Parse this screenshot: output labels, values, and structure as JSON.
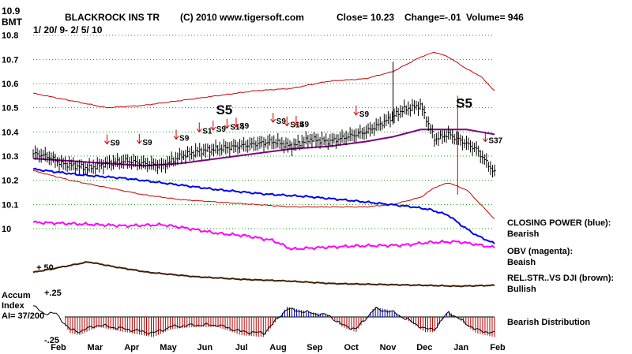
{
  "chart_data": {
    "type": "line",
    "header": {
      "y_top_label": "10.9",
      "ticker": "BMT",
      "name": "BLACKROCK INS TR",
      "copyright": "(C) 2010 www.tigersoft.com",
      "close": "Close=  10.23",
      "change": "Change=-.01",
      "volume": "Volume= 946",
      "date_range": "1/ 20/ 9- 2/ 5/ 10"
    },
    "price_axis": {
      "ylim": [
        10.0,
        10.9
      ],
      "ticks": [
        "10.9",
        "10.8",
        "10.7",
        "10.6",
        "10.5",
        "10.4",
        "10.3",
        "10.2",
        "10.1",
        "10"
      ]
    },
    "x_ticks": [
      "Feb",
      "Mar",
      "Apr",
      "May",
      "Jun",
      "Jul",
      "Aug",
      "Sep",
      "Oct",
      "Nov",
      "Dec",
      "Jan",
      "Feb"
    ],
    "price_series": {
      "t": [
        0,
        0.03,
        0.06,
        0.09,
        0.12,
        0.16,
        0.2,
        0.24,
        0.28,
        0.32,
        0.36,
        0.4,
        0.44,
        0.48,
        0.52,
        0.56,
        0.6,
        0.64,
        0.68,
        0.72,
        0.76,
        0.8,
        0.84,
        0.87,
        0.9,
        0.93,
        0.96,
        1.0
      ],
      "close": [
        10.31,
        10.3,
        10.27,
        10.26,
        10.25,
        10.27,
        10.28,
        10.27,
        10.26,
        10.3,
        10.32,
        10.33,
        10.34,
        10.35,
        10.36,
        10.34,
        10.37,
        10.36,
        10.38,
        10.4,
        10.44,
        10.49,
        10.51,
        10.37,
        10.39,
        10.36,
        10.33,
        10.23
      ]
    },
    "bands": {
      "t": [
        0,
        0.08,
        0.16,
        0.24,
        0.32,
        0.4,
        0.48,
        0.56,
        0.64,
        0.72,
        0.78,
        0.84,
        0.87,
        0.9,
        0.94,
        0.97,
        1.0
      ],
      "upper": [
        10.56,
        10.53,
        10.5,
        10.51,
        10.53,
        10.55,
        10.57,
        10.58,
        10.61,
        10.62,
        10.65,
        10.71,
        10.73,
        10.71,
        10.66,
        10.63,
        10.57
      ],
      "lower": [
        10.24,
        10.2,
        10.17,
        10.14,
        10.12,
        10.11,
        10.1,
        10.09,
        10.09,
        10.09,
        10.1,
        10.13,
        10.17,
        10.19,
        10.16,
        10.1,
        10.04
      ],
      "ma": [
        10.29,
        10.28,
        10.27,
        10.26,
        10.27,
        10.29,
        10.31,
        10.33,
        10.34,
        10.36,
        10.38,
        10.41,
        10.41,
        10.41,
        10.41,
        10.4,
        10.39
      ]
    },
    "signals": [
      {
        "label": "S9",
        "t": 0.16,
        "dir": "sell"
      },
      {
        "label": "S9",
        "t": 0.23,
        "dir": "sell"
      },
      {
        "label": "S9",
        "t": 0.31,
        "dir": "sell"
      },
      {
        "label": "S1",
        "t": 0.36,
        "dir": "sell"
      },
      {
        "label": "S9",
        "t": 0.39,
        "dir": "sell"
      },
      {
        "label": "S14",
        "t": 0.42,
        "dir": "sell"
      },
      {
        "label": "S9",
        "t": 0.44,
        "dir": "sell"
      },
      {
        "label": "S9",
        "t": 0.52,
        "dir": "sell"
      },
      {
        "label": "S14",
        "t": 0.55,
        "dir": "sell"
      },
      {
        "label": "S9",
        "t": 0.57,
        "dir": "sell"
      },
      {
        "label": "S9",
        "t": 0.7,
        "dir": "sell"
      },
      {
        "label": "S37",
        "t": 0.98,
        "dir": "sell"
      }
    ],
    "big_signals": [
      {
        "label": "S5",
        "t": 0.41
      },
      {
        "label": "S5",
        "t": 0.93
      }
    ],
    "closing_power": {
      "t": [
        0,
        0.1,
        0.2,
        0.3,
        0.4,
        0.5,
        0.6,
        0.7,
        0.76,
        0.82,
        0.86,
        0.9,
        0.93,
        0.96,
        1.0
      ],
      "values": [
        0.95,
        0.87,
        0.82,
        0.74,
        0.66,
        0.6,
        0.56,
        0.5,
        0.46,
        0.42,
        0.38,
        0.3,
        0.15,
        0.02,
        -0.1
      ]
    },
    "obv": {
      "t": [
        0,
        0.1,
        0.2,
        0.28,
        0.34,
        0.4,
        0.46,
        0.52,
        0.56,
        0.62,
        0.7,
        0.8,
        0.86,
        0.92,
        0.96,
        1.0
      ],
      "values": [
        0.96,
        0.92,
        0.87,
        0.9,
        0.8,
        0.68,
        0.62,
        0.5,
        0.28,
        0.32,
        0.36,
        0.38,
        0.45,
        0.47,
        0.4,
        0.32
      ]
    },
    "rel_strength": {
      "ref_label": "+ 50",
      "t": [
        0,
        0.06,
        0.12,
        0.18,
        0.25,
        0.35,
        0.45,
        0.55,
        0.65,
        0.75,
        0.85,
        0.92,
        1.0
      ],
      "values": [
        0.3,
        0.6,
        0.9,
        0.6,
        0.3,
        0.05,
        -0.1,
        -0.2,
        -0.35,
        -0.4,
        -0.45,
        -0.5,
        -0.45
      ]
    },
    "accum_index": {
      "title_line1": "Accum",
      "title_line2": "Index",
      "ai_reading": "AI= 37/200",
      "upper_label": "+.25",
      "lower_label": "-.25",
      "ylim": [
        -0.25,
        0.25
      ],
      "t": [
        0,
        0.02,
        0.05,
        0.08,
        0.1,
        0.14,
        0.2,
        0.26,
        0.3,
        0.35,
        0.4,
        0.45,
        0.5,
        0.55,
        0.6,
        0.64,
        0.67,
        0.7,
        0.74,
        0.78,
        0.82,
        0.85,
        0.87,
        0.9,
        0.93,
        0.96,
        1.0
      ],
      "values": [
        0.14,
        0.05,
        0.04,
        -0.16,
        -0.18,
        -0.1,
        -0.15,
        -0.2,
        -0.12,
        -0.1,
        -0.1,
        -0.18,
        -0.2,
        0.1,
        0.05,
        0.02,
        -0.1,
        -0.15,
        0.1,
        0.06,
        -0.06,
        -0.15,
        -0.15,
        0.06,
        -0.05,
        -0.16,
        -0.2
      ]
    },
    "legend": {
      "closing_power_title": "CLOSING POWER (blue):",
      "closing_power_status": "Bearish",
      "obv_title": "OBV (magenta):",
      "obv_status": "Beaish",
      "relstr_title": "REL.STR..VS DJI (brown):",
      "relstr_status": "Bullish",
      "accum_status": "Bearish Distribution"
    },
    "colors": {
      "band": "#cc0000",
      "ma": "#800080",
      "closing_power": "#0000ee",
      "obv": "#ff00ff",
      "rel_strength": "#402000",
      "gridline": "#00aa00",
      "accum_pos": "#0000aa",
      "accum_neg": "#bb0000"
    }
  }
}
